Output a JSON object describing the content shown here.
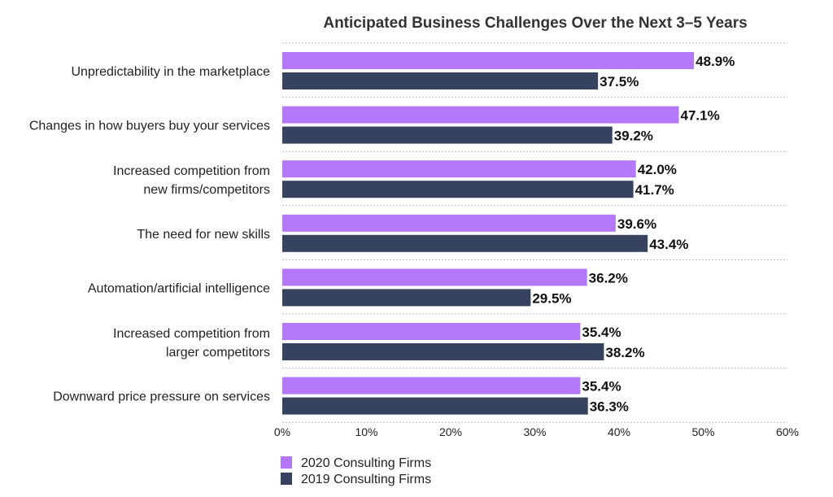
{
  "chart_data": {
    "type": "bar",
    "orientation": "horizontal",
    "title": "Anticipated Business Challenges Over the Next 3–5 Years",
    "categories": [
      [
        "Unpredictability in the marketplace"
      ],
      [
        "Changes in how buyers buy your services"
      ],
      [
        "Increased competition from",
        "new firms/competitors"
      ],
      [
        "The need for new skills"
      ],
      [
        "Automation/artificial intelligence"
      ],
      [
        "Increased competition from",
        "larger competitors"
      ],
      [
        "Downward price pressure on services"
      ]
    ],
    "series": [
      {
        "name": "2020 Consulting Firms",
        "color": "#b477f9",
        "values": [
          48.9,
          47.1,
          42.0,
          39.6,
          36.2,
          35.4,
          35.4
        ],
        "labels": [
          "48.9%",
          "47.1%",
          "42.0%",
          "39.6%",
          "36.2%",
          "35.4%",
          "35.4%"
        ]
      },
      {
        "name": "2019 Consulting Firms",
        "color": "#36435e",
        "values": [
          37.5,
          39.2,
          41.7,
          43.4,
          29.5,
          38.2,
          36.3
        ],
        "labels": [
          "37.5%",
          "39.2%",
          "41.7%",
          "43.4%",
          "29.5%",
          "38.2%",
          "36.3%"
        ]
      }
    ],
    "xlim": [
      0,
      60
    ],
    "xticks": [
      "0%",
      "10%",
      "20%",
      "30%",
      "40%",
      "50%",
      "60%"
    ],
    "xlabel": "",
    "ylabel": "",
    "grid": "dotted row separators",
    "legend": "bottom-left"
  }
}
